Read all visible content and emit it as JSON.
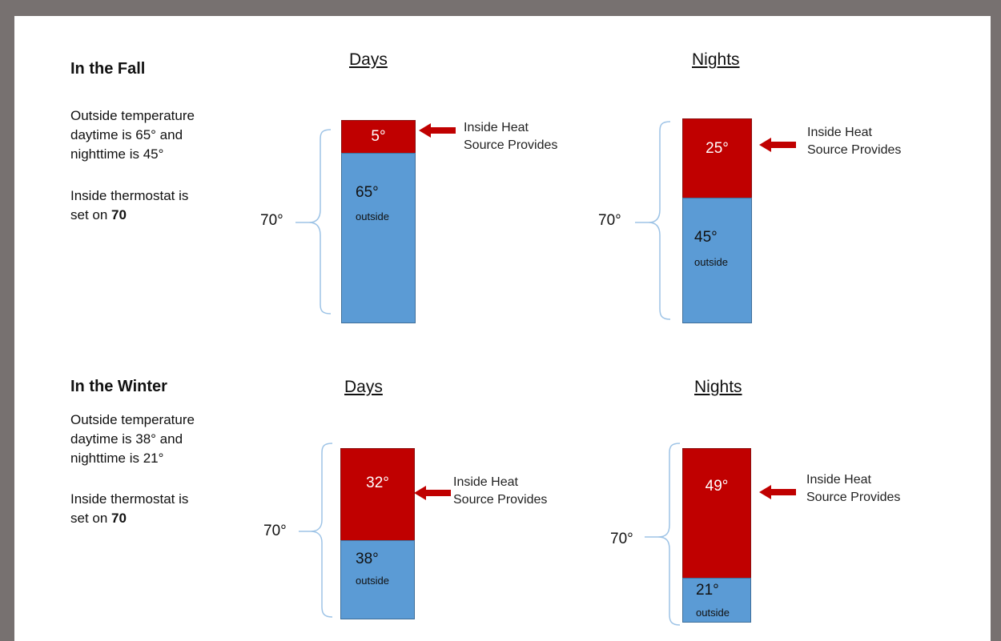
{
  "fall": {
    "title": "In the Fall",
    "outside_line1": "Outside temperature",
    "outside_line2": "daytime is 65° and",
    "outside_line3": "nighttime is 45°",
    "thermo_prefix": "Inside thermostat is",
    "thermo_line2_prefix": "set on ",
    "thermo_value": "70",
    "days": {
      "header": "Days",
      "total": "70°",
      "heat_deg": "5°",
      "outside_deg": "65°",
      "outside_word": "outside",
      "heat_line1": "Inside Heat",
      "heat_line2": "Source Provides"
    },
    "nights": {
      "header": "Nights",
      "total": "70°",
      "heat_deg": "25°",
      "outside_deg": "45°",
      "outside_word": "outside",
      "heat_line1": "Inside Heat",
      "heat_line2": "Source Provides"
    }
  },
  "winter": {
    "title": "In the Winter",
    "outside_line1": "Outside temperature",
    "outside_line2": "daytime is 38° and",
    "outside_line3": "nighttime is 21°",
    "thermo_prefix": "Inside thermostat is",
    "thermo_line2_prefix": "set on ",
    "thermo_value": "70",
    "days": {
      "header": "Days",
      "total": "70°",
      "heat_deg": "32°",
      "outside_deg": "38°",
      "outside_word": "outside",
      "heat_line1": "Inside Heat",
      "heat_line2": "Source Provides"
    },
    "nights": {
      "header": "Nights",
      "total": "70°",
      "heat_deg": "49°",
      "outside_deg": "21°",
      "outside_word": "outside",
      "heat_line1": "Inside Heat",
      "heat_line2": "Source Provides"
    }
  },
  "colors": {
    "heat_red": "#c00000",
    "outside_blue": "#5b9bd5",
    "brace_blue": "#9dc3e6",
    "frame_gray": "#777170"
  },
  "icons": {
    "arrow": "left-arrow-icon",
    "brace": "curly-brace-icon"
  }
}
